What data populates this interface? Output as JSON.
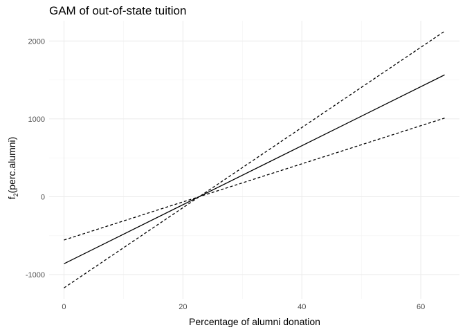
{
  "chart_data": {
    "type": "line",
    "title": "GAM of out-of-state tuition",
    "xlabel": "Percentage of alumni donation",
    "ylabel": {
      "prefix": "f",
      "subscript": "2",
      "suffix": "(perc.alumni)"
    },
    "xlim": [
      -2.5,
      66.5
    ],
    "ylim": [
      -1310,
      2260
    ],
    "x_ticks": [
      0,
      20,
      40,
      60
    ],
    "x_tick_labels": [
      "0",
      "20",
      "40",
      "60"
    ],
    "y_ticks": [
      -1000,
      0,
      1000,
      2000
    ],
    "y_tick_labels": [
      "-1000",
      "0",
      "1000",
      "2000"
    ],
    "grid": true,
    "legend": "none",
    "series": [
      {
        "style": "solid",
        "color": "#000000",
        "x": [
          0,
          64
        ],
        "y": [
          -860,
          1565
        ]
      },
      {
        "style": "dashed",
        "color": "#000000",
        "x": [
          0,
          64
        ],
        "y": [
          -555,
          1010
        ]
      },
      {
        "style": "dashed",
        "color": "#000000",
        "x": [
          0,
          64
        ],
        "y": [
          -1170,
          2125
        ]
      }
    ]
  }
}
